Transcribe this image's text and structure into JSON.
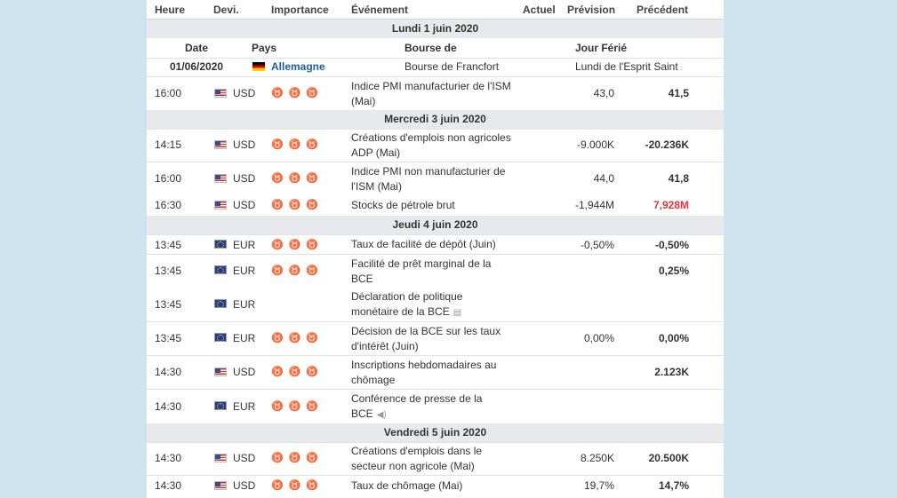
{
  "columns": {
    "time": "Heure",
    "currency": "Devi.",
    "importance": "Importance",
    "event": "Événement",
    "actual": "Actuel",
    "forecast": "Prévision",
    "previous": "Précédent"
  },
  "holiday_header": {
    "date": "Date",
    "country": "Pays",
    "exchange": "Bourse de",
    "holiday": "Jour Férié"
  },
  "holiday": {
    "date": "01/06/2020",
    "country": "Allemagne",
    "exchange": "Bourse de Francfort",
    "name": "Lundi de l'Esprit Saint"
  },
  "days": [
    "Lundi 1 juin 2020",
    "Mercredi 3 juin 2020",
    "Jeudi 4 juin 2020",
    "Vendredi 5 juin 2020"
  ],
  "importance_icon": "bull-icon",
  "rows": [
    {
      "time": "16:00",
      "cur": "USD",
      "event": "Indice PMI manufacturier de l'ISM (Mai)",
      "actual": "",
      "forecast": "43,0",
      "previous": "41,5"
    },
    {
      "time": "14:15",
      "cur": "USD",
      "event": "Créations d'emplois non agricoles ADP (Mai)",
      "actual": "",
      "forecast": "-9.000K",
      "previous": "-20.236K"
    },
    {
      "time": "16:00",
      "cur": "USD",
      "event": "Indice PMI non manufacturier de l'ISM (Mai)",
      "actual": "",
      "forecast": "44,0",
      "previous": "41,8"
    },
    {
      "time": "16:30",
      "cur": "USD",
      "event": "Stocks de pétrole brut",
      "actual": "",
      "forecast": "-1,944M",
      "previous": "7,928M"
    },
    {
      "time": "13:45",
      "cur": "EUR",
      "event": "Taux de facilité de dépôt (Juin)",
      "actual": "",
      "forecast": "-0,50%",
      "previous": "-0,50%"
    },
    {
      "time": "13:45",
      "cur": "EUR",
      "event": "Facilité de prêt marginal de la BCE",
      "actual": "",
      "forecast": "",
      "previous": "0,25%"
    },
    {
      "time": "13:45",
      "cur": "EUR",
      "event": "Déclaration de politique monétaire de la BCE",
      "actual": "",
      "forecast": "",
      "previous": ""
    },
    {
      "time": "13:45",
      "cur": "EUR",
      "event": "Décision de la BCE sur les taux d'intérêt (Juin)",
      "actual": "",
      "forecast": "0,00%",
      "previous": "0,00%"
    },
    {
      "time": "14:30",
      "cur": "USD",
      "event": "Inscriptions hebdomadaires au chômage",
      "actual": "",
      "forecast": "",
      "previous": "2.123K"
    },
    {
      "time": "14:30",
      "cur": "EUR",
      "event": "Conférence de presse de la BCE",
      "actual": "",
      "forecast": "",
      "previous": ""
    },
    {
      "time": "14:30",
      "cur": "USD",
      "event": "Créations d'emplois dans le secteur non agricole (Mai)",
      "actual": "",
      "forecast": "8.250K",
      "previous": "20.500K"
    },
    {
      "time": "14:30",
      "cur": "USD",
      "event": "Taux de chômage (Mai)",
      "actual": "",
      "forecast": "19,7%",
      "previous": "14,7%"
    }
  ],
  "colors": {
    "negative_previous": "#e8323c",
    "day_bg": "#e8e9ec",
    "page_bg": "#cfe3ef",
    "link": "#1f5fa8"
  }
}
